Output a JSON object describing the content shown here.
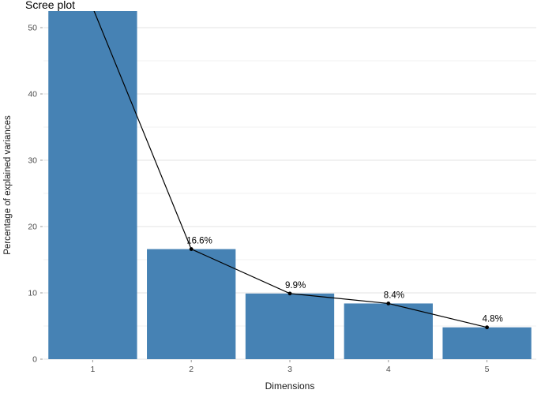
{
  "chart_data": {
    "type": "bar",
    "title": "Scree plot",
    "xlabel": "Dimensions",
    "ylabel": "Percentage of explained variances",
    "categories": [
      "1",
      "2",
      "3",
      "4",
      "5"
    ],
    "series": [
      {
        "name": "percentage of explained variances",
        "type": "bar-with-line-overlay",
        "values": [
          53.0,
          16.6,
          9.9,
          8.4,
          4.8
        ]
      }
    ],
    "value_labels": [
      "",
      "16.6%",
      "9.9%",
      "8.4%",
      "4.8%"
    ],
    "ylim": [
      0,
      52.5
    ],
    "yticks": [
      0,
      10,
      20,
      30,
      40,
      50
    ],
    "yticks_minor": [
      5,
      15,
      25,
      35,
      45
    ],
    "grid": "horizontal",
    "legend": "none",
    "line_overlay": true,
    "first_bar_clipped_at_top": true,
    "colors": {
      "bar": "#4682b4",
      "line": "#000000",
      "point": "#000000",
      "grid_major": "#e3e3e3",
      "grid_minor": "#f2f2f2",
      "axis_text": "#4d4d4d",
      "tick_mark": "#9a9a9a",
      "text": "#000000",
      "background": "#ffffff"
    }
  }
}
